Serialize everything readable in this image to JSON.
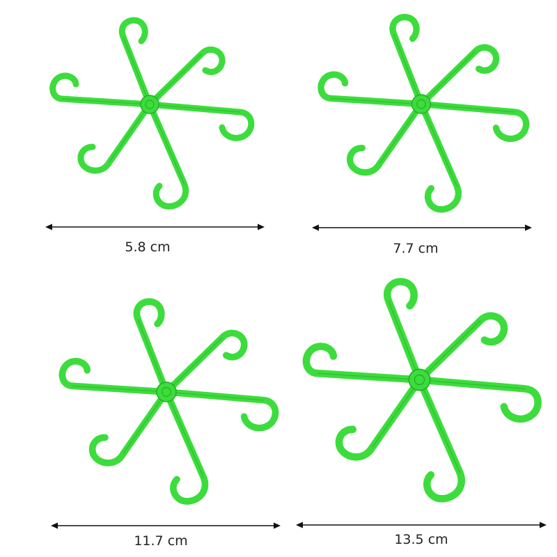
{
  "products": [
    {
      "size_label": "5.8 cm"
    },
    {
      "size_label": "7.7 cm"
    },
    {
      "size_label": "11.7 cm"
    },
    {
      "size_label": "13.5 cm"
    }
  ],
  "colors": {
    "hanger": "#3ddc3d",
    "hanger_dark": "#22b322",
    "dimension_line": "#111111",
    "label": "#222222"
  },
  "icons": {
    "product": "six-arm-spiral-hanger",
    "dimension": "double-arrow"
  }
}
